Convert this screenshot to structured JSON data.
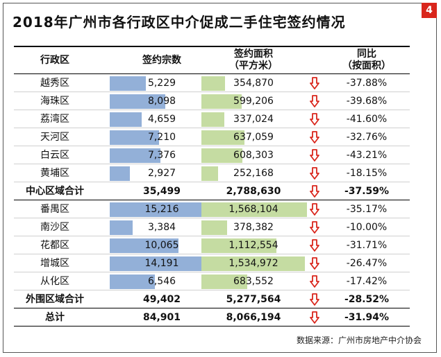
{
  "badge": "4",
  "title": "2018年广州市各行政区中介促成二手住宅签约情况",
  "headers": {
    "district": "行政区",
    "count": "签约宗数",
    "area_l1": "签约面积",
    "area_l2": "（平方米）",
    "yoy_l1": "同比",
    "yoy_l2": "（按面积）"
  },
  "source": "数据来源：广州市房地产中介协会",
  "colors": {
    "count_bar": "#93b0d8",
    "area_bar": "#c5dca2",
    "arrow": "#d9261c"
  },
  "chart_data": {
    "type": "table",
    "columns": [
      "行政区",
      "签约宗数",
      "签约面积（平方米）",
      "同比（按面积）"
    ],
    "rows": [
      {
        "district": "越秀区",
        "count": "5,229",
        "area": "354,870",
        "yoy": "-37.88%",
        "count_value": 5229,
        "area_value": 354870,
        "total": false
      },
      {
        "district": "海珠区",
        "count": "8,098",
        "area": "599,206",
        "yoy": "-39.68%",
        "count_value": 8098,
        "area_value": 599206,
        "total": false
      },
      {
        "district": "荔湾区",
        "count": "4,659",
        "area": "337,024",
        "yoy": "-41.60%",
        "count_value": 4659,
        "area_value": 337024,
        "total": false
      },
      {
        "district": "天河区",
        "count": "7,210",
        "area": "637,059",
        "yoy": "-32.76%",
        "count_value": 7210,
        "area_value": 637059,
        "total": false
      },
      {
        "district": "白云区",
        "count": "7,376",
        "area": "608,303",
        "yoy": "-43.21%",
        "count_value": 7376,
        "area_value": 608303,
        "total": false
      },
      {
        "district": "黄埔区",
        "count": "2,927",
        "area": "252,168",
        "yoy": "-18.15%",
        "count_value": 2927,
        "area_value": 252168,
        "total": false
      },
      {
        "district": "中心区域合计",
        "count": "35,499",
        "area": "2,788,630",
        "yoy": "-37.59%",
        "total": true
      },
      {
        "district": "番禺区",
        "count": "15,216",
        "area": "1,568,104",
        "yoy": "-35.17%",
        "count_value": 15216,
        "area_value": 1568104,
        "total": false
      },
      {
        "district": "南沙区",
        "count": "3,384",
        "area": "378,382",
        "yoy": "-10.00%",
        "count_value": 3384,
        "area_value": 378382,
        "total": false
      },
      {
        "district": "花都区",
        "count": "10,065",
        "area": "1,112,554",
        "yoy": "-31.71%",
        "count_value": 10065,
        "area_value": 1112554,
        "total": false
      },
      {
        "district": "增城区",
        "count": "14,191",
        "area": "1,534,972",
        "yoy": "-26.47%",
        "count_value": 14191,
        "area_value": 1534972,
        "total": false
      },
      {
        "district": "从化区",
        "count": "6,546",
        "area": "683,552",
        "yoy": "-17.42%",
        "count_value": 6546,
        "area_value": 683552,
        "total": false
      },
      {
        "district": "外围区域合计",
        "count": "49,402",
        "area": "5,277,564",
        "yoy": "-28.52%",
        "total": true
      },
      {
        "district": "总计",
        "count": "84,901",
        "area": "8,066,194",
        "yoy": "-31.94%",
        "total": true
      }
    ],
    "count_bar_max": 15216,
    "area_bar_max": 1568104
  }
}
